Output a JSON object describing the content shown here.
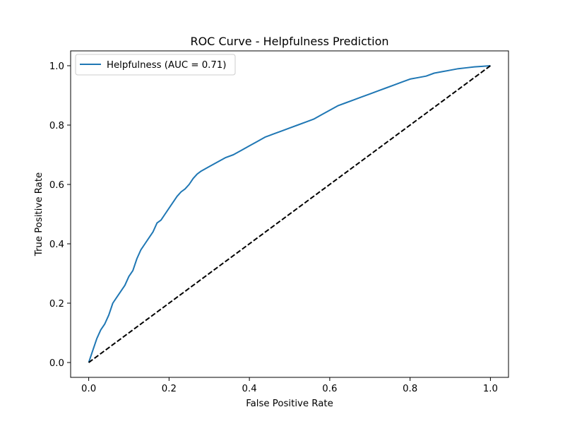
{
  "chart_data": {
    "type": "line",
    "title": "ROC Curve - Helpfulness Prediction",
    "xlabel": "False Positive Rate",
    "ylabel": "True Positive Rate",
    "xlim": [
      -0.045,
      1.045
    ],
    "ylim": [
      -0.05,
      1.05
    ],
    "xticks": [
      0.0,
      0.2,
      0.4,
      0.6,
      0.8,
      1.0
    ],
    "yticks": [
      0.0,
      0.2,
      0.4,
      0.6,
      0.8,
      1.0
    ],
    "xtick_labels": [
      "0.0",
      "0.2",
      "0.4",
      "0.6",
      "0.8",
      "1.0"
    ],
    "ytick_labels": [
      "0.0",
      "0.2",
      "0.4",
      "0.6",
      "0.8",
      "1.0"
    ],
    "grid": false,
    "legend": {
      "placement": "top-left",
      "entries": [
        "Helpfulness (AUC = 0.71)"
      ]
    },
    "series": [
      {
        "name": "Helpfulness (AUC = 0.71)",
        "color": "#1f77b4",
        "style": "solid",
        "x": [
          0.0,
          0.005,
          0.01,
          0.015,
          0.02,
          0.03,
          0.04,
          0.05,
          0.06,
          0.07,
          0.08,
          0.09,
          0.1,
          0.11,
          0.12,
          0.13,
          0.14,
          0.15,
          0.16,
          0.17,
          0.18,
          0.19,
          0.2,
          0.21,
          0.22,
          0.23,
          0.24,
          0.25,
          0.26,
          0.27,
          0.28,
          0.3,
          0.32,
          0.34,
          0.36,
          0.38,
          0.4,
          0.42,
          0.44,
          0.46,
          0.48,
          0.5,
          0.52,
          0.54,
          0.56,
          0.58,
          0.6,
          0.62,
          0.64,
          0.66,
          0.68,
          0.7,
          0.72,
          0.74,
          0.76,
          0.78,
          0.8,
          0.82,
          0.84,
          0.86,
          0.88,
          0.9,
          0.92,
          0.94,
          0.96,
          0.98,
          1.0
        ],
        "y": [
          0.0,
          0.02,
          0.04,
          0.06,
          0.08,
          0.11,
          0.13,
          0.16,
          0.2,
          0.22,
          0.24,
          0.26,
          0.29,
          0.31,
          0.35,
          0.38,
          0.4,
          0.42,
          0.44,
          0.47,
          0.48,
          0.5,
          0.52,
          0.54,
          0.56,
          0.575,
          0.585,
          0.6,
          0.62,
          0.635,
          0.645,
          0.66,
          0.675,
          0.69,
          0.7,
          0.715,
          0.73,
          0.745,
          0.76,
          0.77,
          0.78,
          0.79,
          0.8,
          0.81,
          0.82,
          0.835,
          0.85,
          0.865,
          0.875,
          0.885,
          0.895,
          0.905,
          0.915,
          0.925,
          0.935,
          0.945,
          0.955,
          0.96,
          0.965,
          0.975,
          0.98,
          0.985,
          0.99,
          0.993,
          0.996,
          0.998,
          1.0
        ]
      },
      {
        "name": "",
        "color": "#000000",
        "style": "dashed",
        "x": [
          0.0,
          1.0
        ],
        "y": [
          0.0,
          1.0
        ]
      }
    ]
  }
}
